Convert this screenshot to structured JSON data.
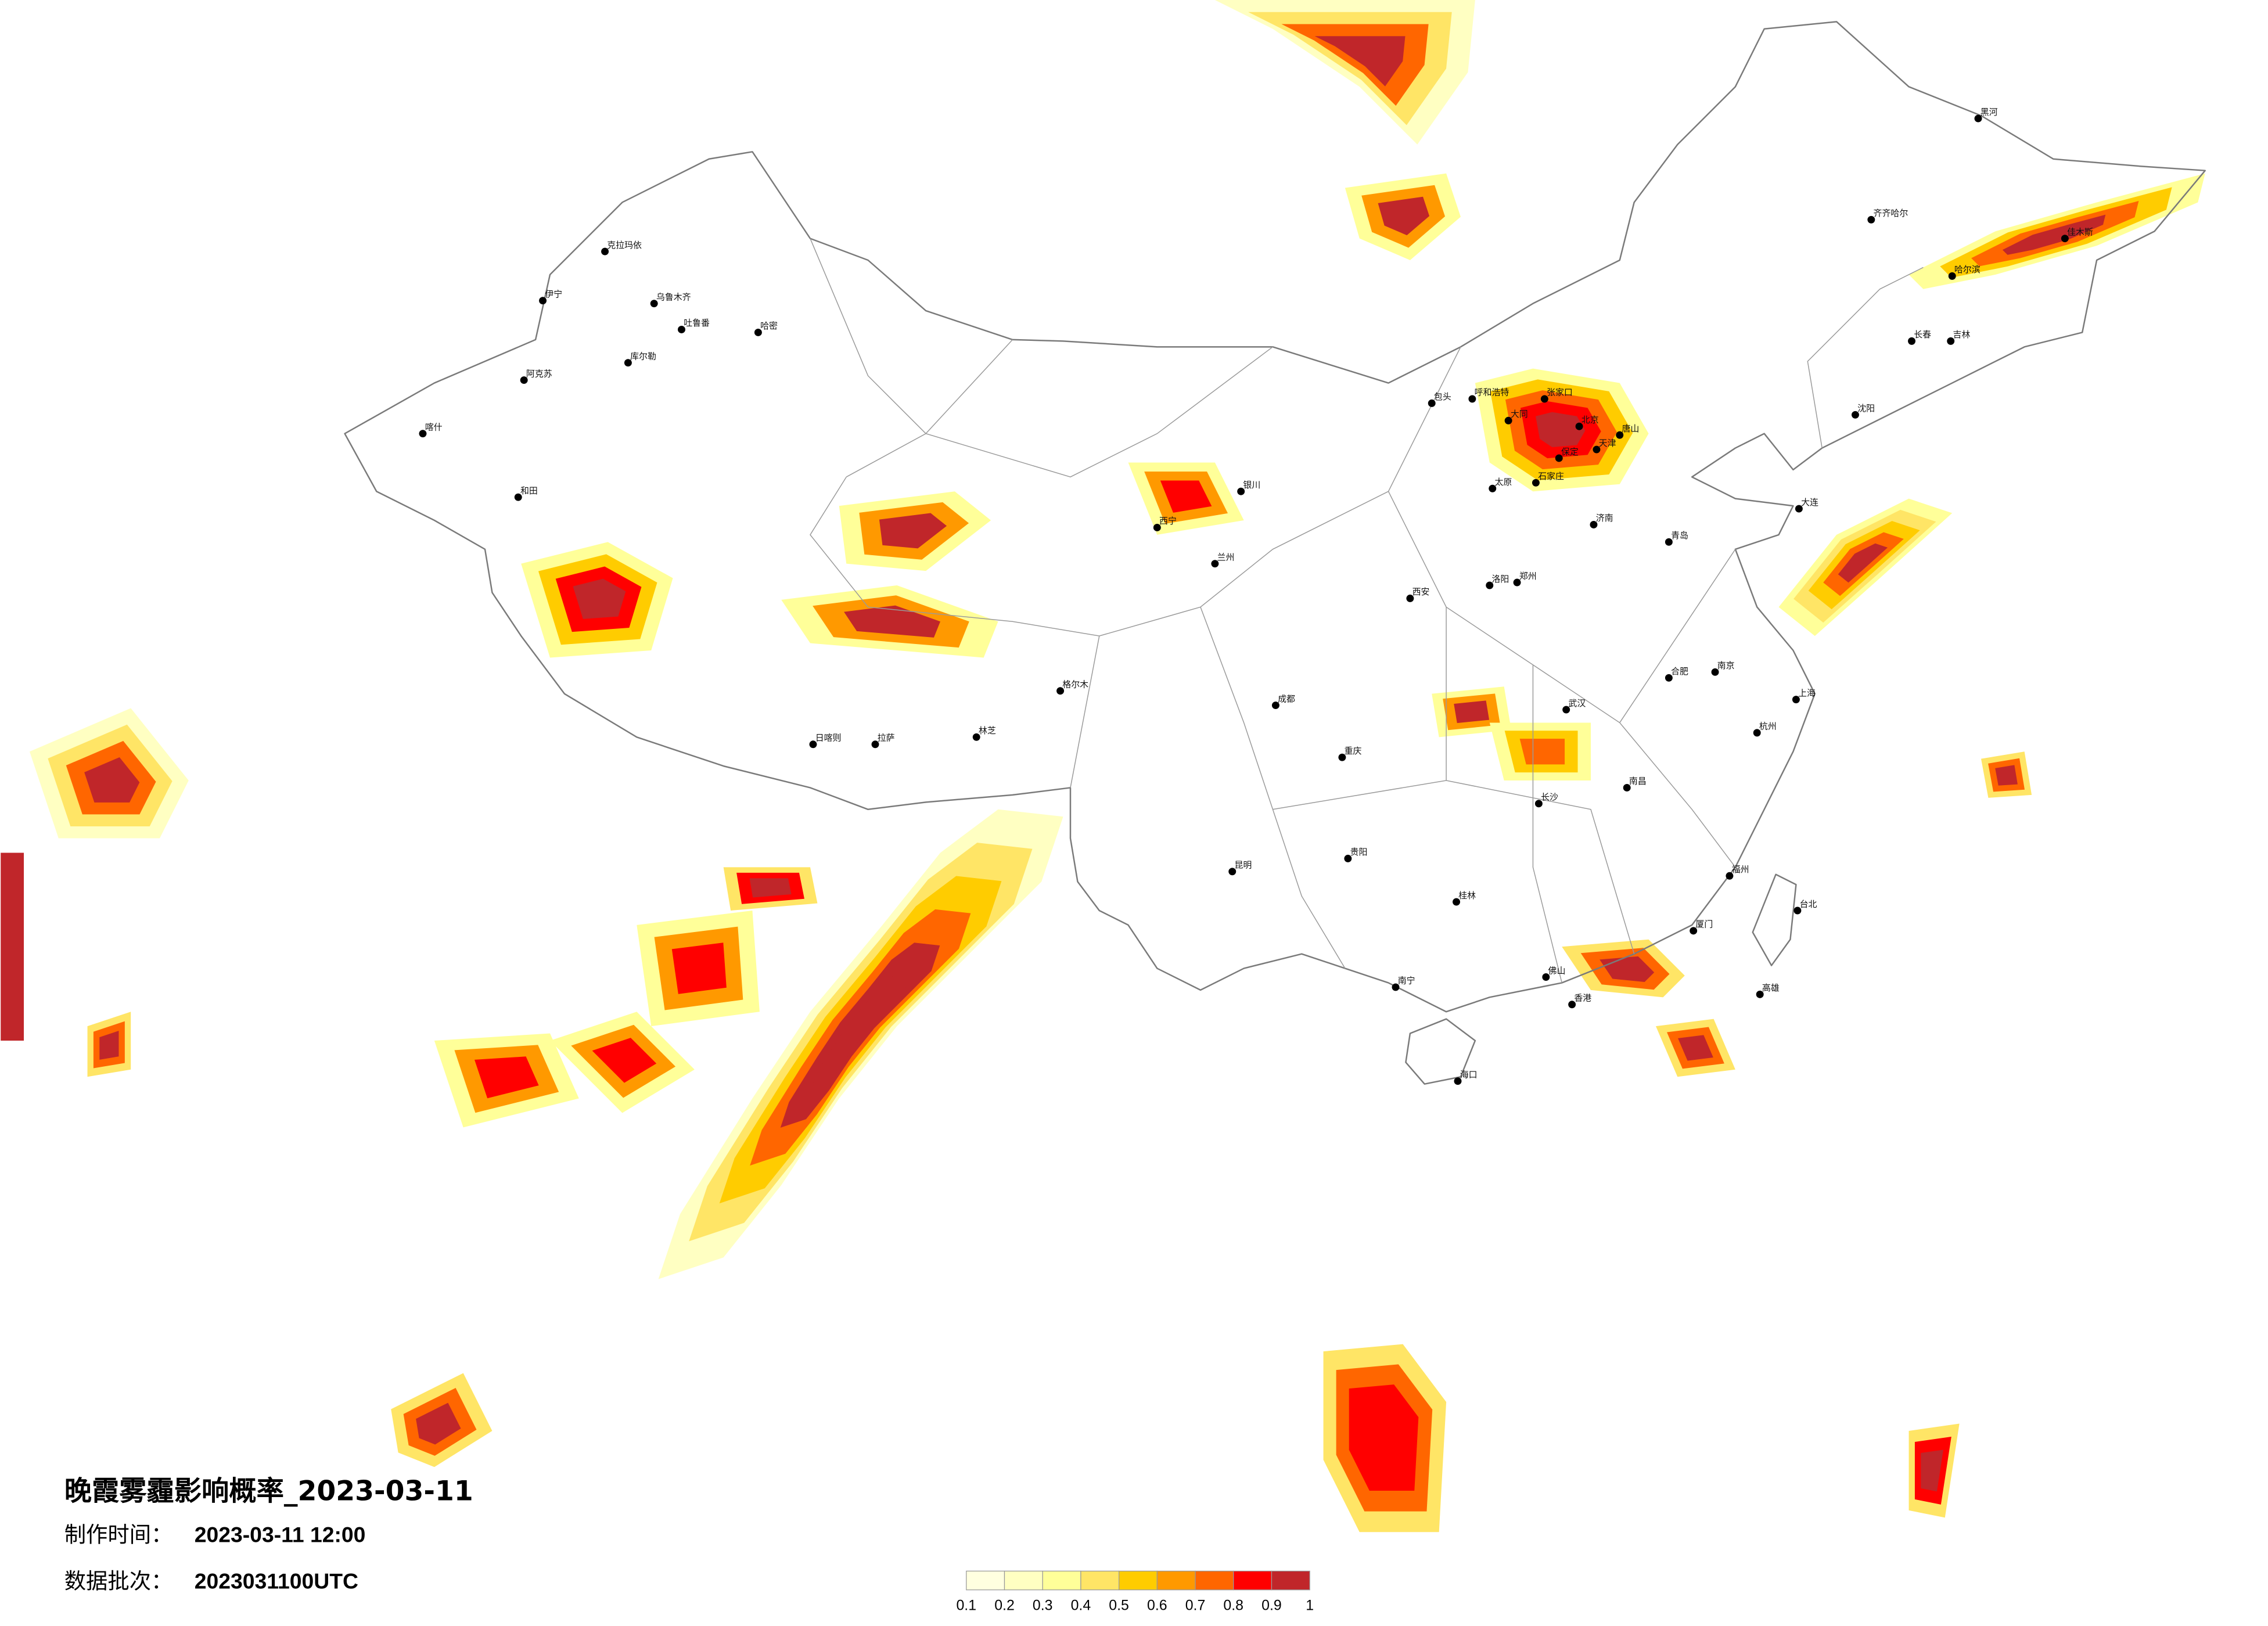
{
  "title": "晚霞雾霾影响概率_2023-03-11",
  "meta": {
    "made_time_label": "制作时间：",
    "made_time_value": "2023-03-11 12:00",
    "batch_label": "数据批次：",
    "batch_value": "2023031100UTC"
  },
  "legend": {
    "labels": [
      "0.1",
      "0.2",
      "0.3",
      "0.4",
      "0.5",
      "0.6",
      "0.7",
      "0.8",
      "0.9",
      "1"
    ],
    "colors": [
      "#FFFFE0",
      "#FFFFC2",
      "#FFFF99",
      "#FFE566",
      "#FFCC00",
      "#FF9900",
      "#FF6600",
      "#FF0000",
      "#C0262A"
    ]
  },
  "cities": [
    "北京",
    "天津",
    "石家庄",
    "太原",
    "呼和浩特",
    "济南",
    "郑州",
    "西安",
    "大同",
    "张家口",
    "保定",
    "青岛",
    "洛阳",
    "包头",
    "唐山",
    "乌鲁木齐",
    "克拉玛依",
    "伊宁",
    "阿克苏",
    "库尔勒",
    "和田",
    "哈密",
    "吐鲁番",
    "哈尔滨",
    "长春",
    "沈阳",
    "大连",
    "齐齐哈尔",
    "佳木斯",
    "黑河",
    "吉林",
    "上海",
    "南京",
    "杭州",
    "武汉",
    "长沙",
    "南昌",
    "福州",
    "佛山",
    "香港",
    "南宁",
    "海口",
    "台北",
    "高雄",
    "重庆",
    "贵阳",
    "桂林",
    "合肥",
    "厦门",
    "拉萨",
    "日喀则",
    "林芝",
    "喀什",
    "成都",
    "昆明",
    "兰州",
    "西宁",
    "银川",
    "格尔木"
  ]
}
